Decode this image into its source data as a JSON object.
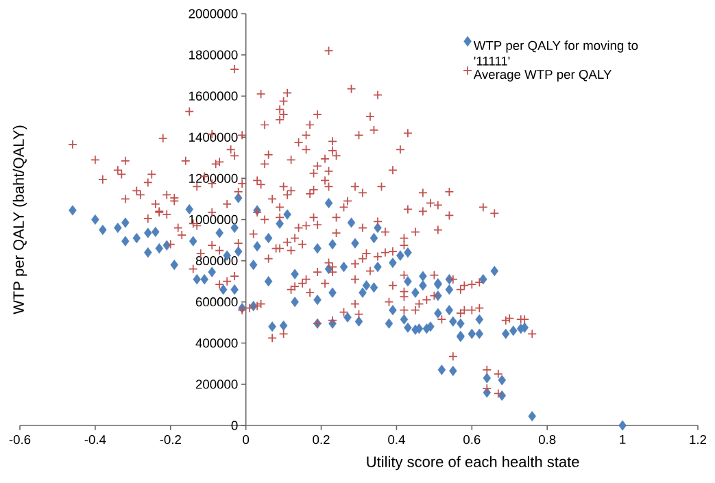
{
  "chart_data": {
    "type": "scatter",
    "xlabel": "Utility score of each health state",
    "ylabel": "WTP per QALY (baht/QALY)",
    "xlim": [
      -0.6,
      1.2
    ],
    "xticks": [
      -0.6,
      -0.4,
      -0.2,
      0,
      0.2,
      0.4,
      0.6,
      0.8,
      1,
      1.2
    ],
    "ylim": [
      0,
      2000000
    ],
    "yticks": [
      0,
      200000,
      400000,
      600000,
      800000,
      1000000,
      1200000,
      1400000,
      1600000,
      1800000,
      2000000
    ],
    "legend": "top right",
    "series": [
      {
        "name": "WTP per QALY for moving to '11111'",
        "color": "#4f81bd",
        "marker": "diamond",
        "x": [
          -0.46,
          -0.4,
          -0.38,
          -0.34,
          -0.32,
          -0.32,
          -0.29,
          -0.26,
          -0.24,
          -0.26,
          -0.23,
          -0.21,
          -0.19,
          -0.15,
          -0.14,
          -0.13,
          -0.11,
          -0.09,
          -0.07,
          -0.05,
          -0.03,
          -0.02,
          -0.06,
          -0.03,
          -0.01,
          -0.02,
          0.03,
          0.11,
          0.09,
          0.06,
          0.03,
          0.02,
          0.06,
          0.13,
          0.19,
          0.23,
          0.22,
          0.28,
          0.29,
          0.26,
          0.13,
          0.19,
          0.23,
          0.07,
          0.1,
          0.19,
          0.23,
          0.27,
          0.3,
          0.32,
          0.34,
          0.35,
          0.39,
          0.43,
          0.35,
          0.34,
          0.45,
          0.47,
          0.51,
          0.54,
          0.54,
          0.39,
          0.42,
          0.46,
          0.49,
          0.51,
          0.54,
          0.57,
          0.31,
          0.02,
          0.22,
          0.41,
          0.43,
          0.47,
          0.51,
          0.51,
          0.63,
          0.66,
          0.38,
          0.43,
          0.45,
          0.48,
          0.55,
          0.57,
          0.62,
          0.57,
          0.6,
          0.62,
          0.69,
          0.71,
          0.73,
          0.74,
          0.52,
          0.55,
          0.64,
          0.68,
          0.64,
          0.68,
          0.76,
          1
        ],
        "values": [
          1045000,
          1000000,
          950000,
          960000,
          985000,
          895000,
          910000,
          935000,
          940000,
          840000,
          860000,
          875000,
          780000,
          1050000,
          895000,
          710000,
          710000,
          745000,
          935000,
          825000,
          960000,
          845000,
          660000,
          660000,
          570000,
          1105000,
          1045000,
          1025000,
          980000,
          910000,
          870000,
          780000,
          700000,
          735000,
          860000,
          880000,
          760000,
          985000,
          885000,
          770000,
          600000,
          610000,
          645000,
          480000,
          485000,
          495000,
          495000,
          525000,
          505000,
          680000,
          670000,
          770000,
          790000,
          840000,
          960000,
          910000,
          645000,
          725000,
          690000,
          710000,
          660000,
          560000,
          515000,
          470000,
          480000,
          545000,
          560000,
          435000,
          645000,
          580000,
          1080000,
          825000,
          700000,
          680000,
          685000,
          630000,
          710000,
          750000,
          495000,
          475000,
          465000,
          470000,
          505000,
          495000,
          515000,
          430000,
          445000,
          445000,
          445000,
          460000,
          470000,
          475000,
          270000,
          265000,
          230000,
          220000,
          160000,
          145000,
          45000,
          0
        ]
      },
      {
        "name": "Average WTP per QALY",
        "color": "#c0504d",
        "marker": "cross",
        "x": [
          -0.46,
          -0.4,
          -0.38,
          -0.34,
          -0.33,
          -0.32,
          -0.32,
          -0.29,
          -0.28,
          -0.26,
          -0.25,
          -0.26,
          -0.24,
          -0.23,
          -0.22,
          -0.21,
          -0.19,
          -0.19,
          -0.16,
          -0.15,
          -0.13,
          -0.11,
          -0.09,
          -0.09,
          -0.08,
          -0.07,
          -0.05,
          -0.04,
          -0.03,
          -0.03,
          -0.01,
          -0.01,
          -0.02,
          -0.09,
          0.22,
          0.04,
          0.11,
          0.1,
          0.09,
          0.1,
          0.09,
          0.05,
          0.19,
          0.17,
          0.16,
          0.14,
          0.16,
          0.06,
          0.05,
          0.12,
          0.28,
          0.35,
          0.33,
          0.34,
          0.3,
          0.43,
          0.41,
          0.23,
          0.23,
          0.24,
          0.21,
          0.19,
          0.22,
          0.18,
          0.21,
          0.22,
          0.39,
          0.03,
          0.04,
          0.1,
          0.12,
          0.11,
          0.18,
          0.17,
          0.29,
          0.31,
          0.36,
          0.27,
          0.26,
          0.07,
          0.09,
          0.09,
          0.03,
          0.05,
          0.18,
          0.24,
          0.35,
          0.43,
          0.47,
          0.47,
          0.49,
          0.51,
          0.54,
          0.54,
          0.19,
          0.31,
          0.24,
          0.14,
          0.16,
          0.02,
          0.13,
          0.11,
          0.15,
          0.08,
          0.09,
          0.12,
          0.06,
          0.45,
          0.51,
          0.42,
          0.42,
          0.37,
          0.39,
          0.32,
          0.35,
          0.31,
          0.29,
          0.22,
          0.23,
          0.23,
          0.19,
          0.33,
          0.29,
          0.21,
          0.16,
          0.15,
          0.13,
          0.12,
          0.17,
          0.42,
          0.5,
          0.55,
          0.39,
          0.42,
          0.42,
          0.46,
          0.48,
          0.5,
          0.38,
          0.42,
          0.45,
          0.58,
          0.57,
          0.52,
          0.29,
          0.3,
          0.26,
          0.19,
          0.23,
          0.04,
          0.03,
          0.01,
          0.07,
          0.1,
          -0.23,
          -0.21,
          -0.18,
          -0.17,
          -0.14,
          -0.13,
          -0.2,
          -0.14,
          -0.12,
          -0.09,
          -0.07,
          -0.05,
          -0.07,
          -0.03,
          -0.02,
          -0.01,
          0.63,
          0.66,
          0.37,
          0.57,
          0.6,
          0.62,
          0.58,
          0.6,
          0.62,
          0.69,
          0.7,
          0.73,
          0.74,
          0.76,
          0.55,
          0.64,
          0.67,
          0.64,
          0.67
        ],
        "values": [
          1365000,
          1290000,
          1195000,
          1240000,
          1220000,
          1285000,
          1100000,
          1140000,
          1120000,
          1180000,
          1220000,
          1005000,
          1075000,
          1040000,
          1395000,
          1120000,
          1090000,
          1105000,
          1285000,
          1525000,
          1160000,
          1210000,
          1175000,
          1415000,
          1270000,
          1280000,
          1075000,
          1340000,
          1310000,
          1730000,
          1410000,
          1175000,
          1135000,
          1035000,
          1820000,
          1610000,
          1615000,
          1575000,
          1535000,
          1510000,
          1485000,
          1460000,
          1510000,
          1460000,
          1410000,
          1375000,
          1340000,
          1315000,
          1270000,
          1290000,
          1635000,
          1605000,
          1500000,
          1435000,
          1410000,
          1420000,
          1340000,
          1380000,
          1335000,
          1310000,
          1295000,
          1260000,
          1235000,
          1225000,
          1190000,
          1160000,
          1240000,
          1190000,
          1170000,
          1160000,
          1140000,
          1120000,
          1145000,
          1125000,
          1160000,
          1130000,
          1160000,
          1090000,
          1060000,
          1100000,
          1060000,
          1010000,
          1035000,
          1000000,
          1010000,
          1010000,
          990000,
          1050000,
          1130000,
          1040000,
          1080000,
          1070000,
          1135000,
          1020000,
          975000,
          960000,
          935000,
          960000,
          970000,
          930000,
          910000,
          890000,
          880000,
          860000,
          860000,
          850000,
          810000,
          940000,
          950000,
          910000,
          875000,
          840000,
          845000,
          835000,
          820000,
          810000,
          785000,
          790000,
          770000,
          745000,
          745000,
          750000,
          710000,
          690000,
          710000,
          690000,
          675000,
          660000,
          645000,
          730000,
          730000,
          710000,
          680000,
          650000,
          625000,
          590000,
          610000,
          630000,
          600000,
          560000,
          560000,
          680000,
          545000,
          515000,
          590000,
          540000,
          550000,
          495000,
          510000,
          590000,
          580000,
          570000,
          425000,
          445000,
          1035000,
          1025000,
          960000,
          925000,
          980000,
          970000,
          880000,
          760000,
          835000,
          875000,
          850000,
          700000,
          685000,
          725000,
          885000,
          560000,
          1060000,
          1030000,
          940000,
          660000,
          685000,
          695000,
          560000,
          560000,
          570000,
          510000,
          520000,
          515000,
          515000,
          445000,
          335000,
          270000,
          250000,
          180000,
          155000
        ]
      }
    ]
  }
}
